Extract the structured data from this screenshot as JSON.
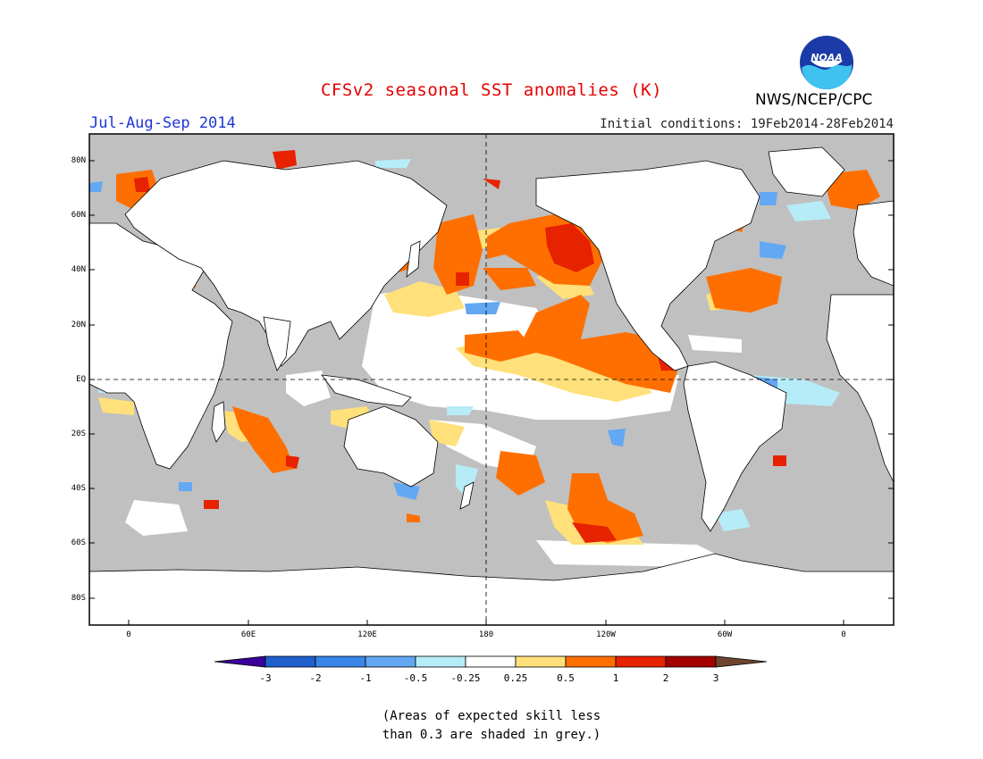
{
  "header": {
    "title": "CFSv2 seasonal SST anomalies (K)",
    "season": "Jul-Aug-Sep 2014",
    "initial_conditions": "Initial conditions: 19Feb2014-28Feb2014",
    "agency": "NWS/NCEP/CPC",
    "logo_text": "NOAA"
  },
  "map": {
    "lat_labels": [
      "80N",
      "60N",
      "40N",
      "20N",
      "EQ",
      "20S",
      "40S",
      "60S",
      "80S"
    ],
    "lon_labels": [
      "0",
      "60E",
      "120E",
      "180",
      "120W",
      "60W",
      "0"
    ],
    "colors": {
      "ocean_grey": "#c0c0c0",
      "land": "#ffffff",
      "coast": "#000000"
    }
  },
  "colorbar": {
    "labels": [
      "-3",
      "-2",
      "-1",
      "-0.5",
      "-0.25",
      "0.25",
      "0.5",
      "1",
      "2",
      "3"
    ],
    "colors": [
      "#3b0099",
      "#1f5fcc",
      "#3a85e8",
      "#62a8f2",
      "#b6ecf7",
      "#ffffff",
      "#ffe07a",
      "#ff6f00",
      "#e62200",
      "#a30000",
      "#6e4430"
    ]
  },
  "note": {
    "line1": "(Areas of expected skill less",
    "line2": "than 0.3 are shaded in grey.)"
  }
}
